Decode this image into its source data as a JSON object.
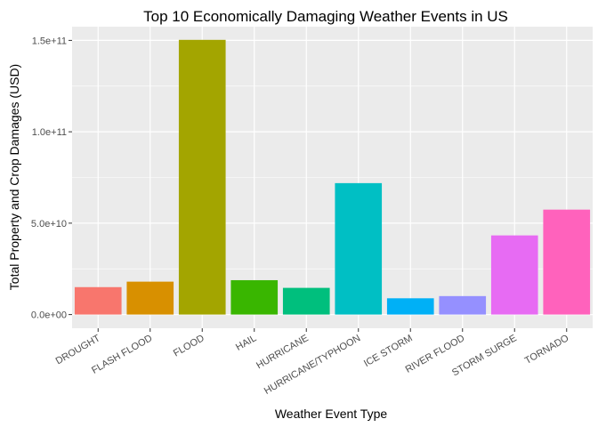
{
  "chart_data": {
    "type": "bar",
    "title": "Top 10 Economically Damaging Weather Events in US",
    "xlabel": "Weather Event Type",
    "ylabel": "Total Property and Crop Damages (USD)",
    "categories": [
      "DROUGHT",
      "FLASH FLOOD",
      "FLOOD",
      "HAIL",
      "HURRICANE",
      "HURRICANE/TYPHOON",
      "ICE STORM",
      "RIVER FLOOD",
      "STORM SURGE",
      "TORNADO"
    ],
    "values": [
      15000000000,
      18000000000,
      150300000000,
      18800000000,
      14600000000,
      71900000000,
      8900000000,
      10100000000,
      43300000000,
      57400000000
    ],
    "colors": [
      "#F8766D",
      "#D89000",
      "#A3A500",
      "#39B600",
      "#00BF7D",
      "#00BFC4",
      "#00B0F6",
      "#9590FF",
      "#E76BF3",
      "#FF62BC"
    ],
    "y_ticks": [
      0,
      50000000000,
      100000000000,
      150000000000
    ],
    "y_tick_labels": [
      "0.0e+00",
      "5.0e+10",
      "1.0e+11",
      "1.5e+11"
    ],
    "ylim": [
      -7500000000,
      157500000000
    ],
    "grid": true,
    "legend": "none",
    "panel_color": "#EBEBEB",
    "grid_color": "#FFFFFF"
  }
}
